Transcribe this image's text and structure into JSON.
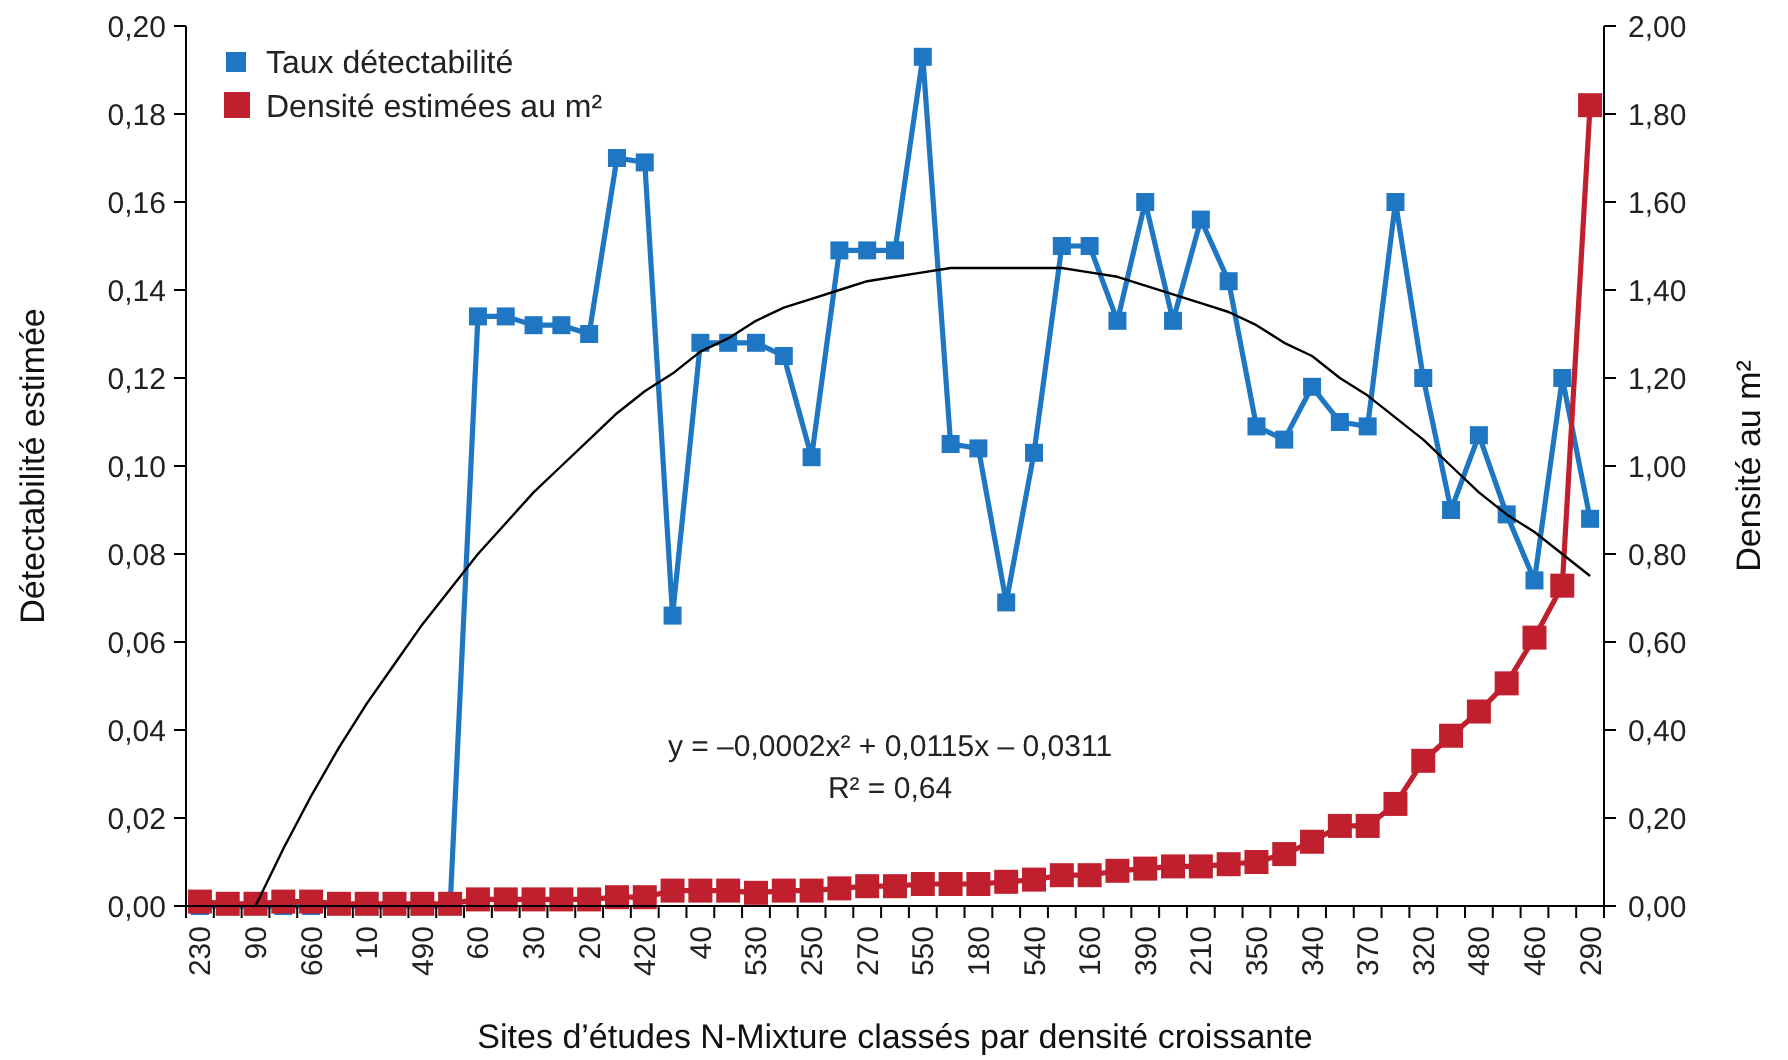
{
  "chart_data": {
    "type": "line",
    "xlabel": "Sites d’études N-Mixture classés par densité croissante",
    "ylabel": "Détectabilité estimée",
    "y2label": "Densité au m²",
    "categories": [
      "230",
      null,
      "90",
      null,
      "660",
      null,
      "10",
      null,
      "490",
      null,
      "60",
      null,
      "30",
      null,
      "20",
      null,
      "420",
      null,
      "40",
      null,
      "530",
      null,
      "250",
      null,
      "270",
      null,
      "550",
      null,
      "180",
      null,
      "540",
      null,
      "160",
      null,
      "390",
      null,
      "210",
      null,
      "350",
      null,
      "340",
      null,
      "370",
      null,
      "320",
      null,
      "480",
      null,
      "460",
      null,
      "290"
    ],
    "ylim": [
      0,
      0.2
    ],
    "yticks": [
      {
        "value": 0,
        "label": "0,00"
      },
      {
        "value": 0.02,
        "label": "0,02"
      },
      {
        "value": 0.04,
        "label": "0,04"
      },
      {
        "value": 0.06,
        "label": "0,06"
      },
      {
        "value": 0.08,
        "label": "0,08"
      },
      {
        "value": 0.1,
        "label": "0,10"
      },
      {
        "value": 0.12,
        "label": "0,12"
      },
      {
        "value": 0.14,
        "label": "0,14"
      },
      {
        "value": 0.16,
        "label": "0,16"
      },
      {
        "value": 0.18,
        "label": "0,18"
      },
      {
        "value": 0.2,
        "label": "0,20"
      }
    ],
    "y2lim": [
      0,
      2
    ],
    "y2ticks": [
      {
        "value": 0,
        "label": "0,00"
      },
      {
        "value": 0.2,
        "label": "0,20"
      },
      {
        "value": 0.4,
        "label": "0,40"
      },
      {
        "value": 0.6,
        "label": "0,60"
      },
      {
        "value": 0.8,
        "label": "0,80"
      },
      {
        "value": 1,
        "label": "1,00"
      },
      {
        "value": 1.2,
        "label": "1,20"
      },
      {
        "value": 1.4,
        "label": "1,40"
      },
      {
        "value": 1.6,
        "label": "1,60"
      },
      {
        "value": 1.8,
        "label": "1,80"
      },
      {
        "value": 2,
        "label": "2,00"
      }
    ],
    "legend": "top left",
    "marker": "square",
    "grid": false,
    "series": [
      {
        "name": "Taux détectabilité",
        "color": "#1f77c4",
        "values": [
          0,
          0,
          0,
          0,
          0,
          0,
          0,
          0,
          0,
          0,
          0.134,
          0.134,
          0.132,
          0.132,
          0.13,
          0.17,
          0.169,
          0.066,
          0.128,
          0.128,
          0.128,
          0.125,
          0.102,
          0.149,
          0.149,
          0.149,
          0.193,
          0.105,
          0.104,
          0.069,
          0.103,
          0.15,
          0.15,
          0.133,
          0.16,
          0.133,
          0.156,
          0.142,
          0.109,
          0.106,
          0.118,
          0.11,
          0.109,
          0.16,
          0.12,
          0.09,
          0.107,
          0.089,
          0.074,
          0.12,
          0.088
        ]
      },
      {
        "name": "Densité estimées au m²",
        "axis": "y2",
        "color": "#c01f2e",
        "values": [
          0.01,
          0.005,
          0.005,
          0.01,
          0.01,
          0.005,
          0.005,
          0.005,
          0.005,
          0.005,
          0.015,
          0.015,
          0.015,
          0.015,
          0.015,
          0.02,
          0.02,
          0.035,
          0.035,
          0.035,
          0.03,
          0.035,
          0.035,
          0.04,
          0.045,
          0.045,
          0.05,
          0.05,
          0.05,
          0.055,
          0.06,
          0.07,
          0.07,
          0.08,
          0.085,
          0.09,
          0.09,
          0.095,
          0.1,
          0.118,
          0.146,
          0.182,
          0.182,
          0.232,
          0.33,
          0.387,
          0.442,
          0.506,
          0.61,
          0.728,
          1.82
        ]
      },
      {
        "type": "line",
        "marker": "none",
        "color": "#000000",
        "values": [
          null,
          null,
          0.0,
          0.013,
          0.025,
          0.036,
          0.046,
          0.055,
          0.064,
          0.072,
          0.08,
          0.087,
          0.094,
          0.1,
          0.106,
          0.112,
          0.117,
          0.121,
          0.126,
          0.129,
          0.133,
          0.136,
          0.138,
          0.14,
          0.142,
          0.143,
          0.144,
          0.145,
          0.145,
          0.145,
          0.145,
          0.145,
          0.144,
          0.143,
          0.141,
          0.139,
          0.137,
          0.135,
          0.132,
          0.128,
          0.125,
          0.12,
          0.116,
          0.111,
          0.106,
          0.1,
          0.094,
          0.089,
          0.085,
          0.08,
          0.075
        ]
      }
    ],
    "annotations": [
      "y = –0,0002x² + 0,0115x – 0,0311",
      "R² = 0,64"
    ]
  }
}
